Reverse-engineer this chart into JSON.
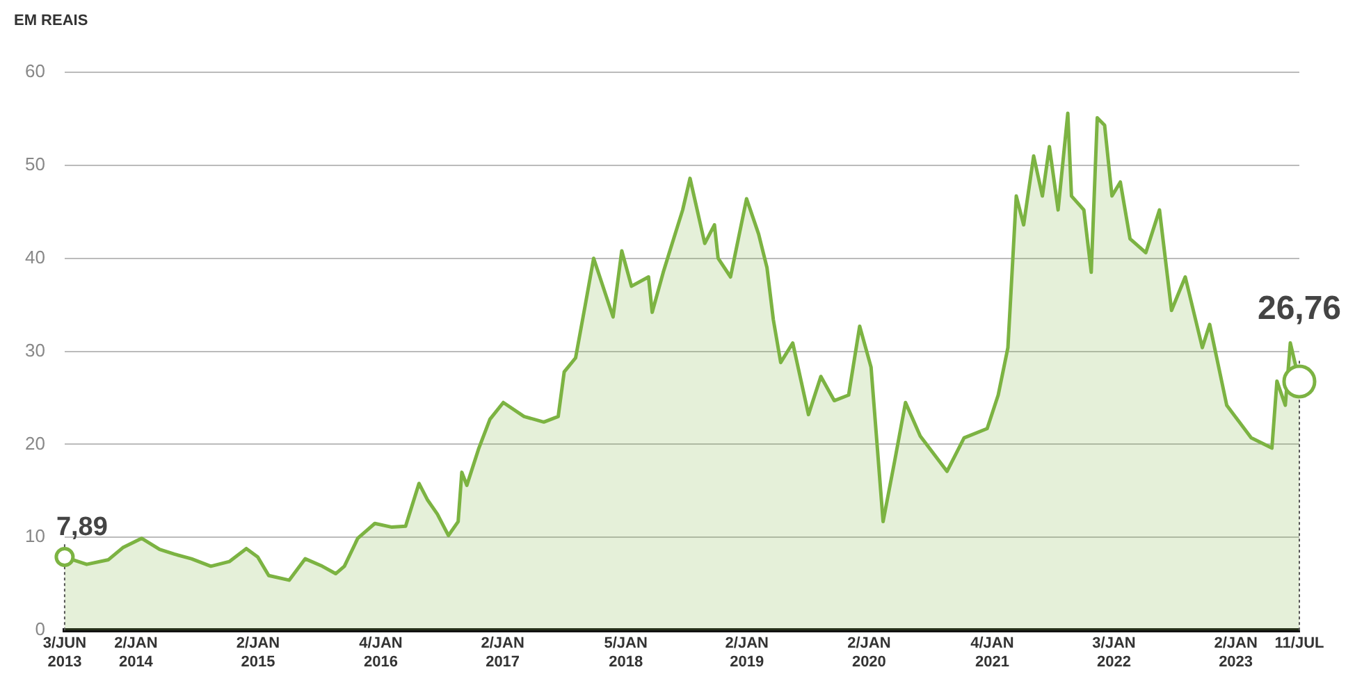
{
  "chart_data": {
    "type": "area",
    "ylabel": "EM REAIS",
    "x": [
      "2013-06-03",
      "2013-08-08",
      "2013-10-12",
      "2013-11-24",
      "2014-01-19",
      "2014-03-14",
      "2014-04-27",
      "2014-06-17",
      "2014-08-14",
      "2014-10-08",
      "2014-11-28",
      "2015-01-01",
      "2015-02-03",
      "2015-04-05",
      "2015-05-23",
      "2015-07-13",
      "2015-08-22",
      "2015-09-17",
      "2015-10-27",
      "2015-12-17",
      "2016-02-06",
      "2016-03-18",
      "2016-04-27",
      "2016-05-23",
      "2016-06-21",
      "2016-07-24",
      "2016-08-22",
      "2016-09-02",
      "2016-09-17",
      "2016-10-23",
      "2016-11-25",
      "2017-01-04",
      "2017-03-07",
      "2017-05-05",
      "2017-06-17",
      "2017-07-05",
      "2017-08-08",
      "2017-09-06",
      "2017-10-01",
      "2017-11-28",
      "2017-12-24",
      "2018-01-22",
      "2018-03-14",
      "2018-03-25",
      "2018-04-27",
      "2018-05-15",
      "2018-06-24",
      "2018-07-16",
      "2018-08-29",
      "2018-09-27",
      "2018-10-08",
      "2018-11-14",
      "2019-01-01",
      "2019-02-06",
      "2019-03-03",
      "2019-03-22",
      "2019-04-13",
      "2019-05-19",
      "2019-07-05",
      "2019-08-11",
      "2019-09-20",
      "2019-11-02",
      "2019-12-05",
      "2020-01-08",
      "2020-02-13",
      "2020-03-18",
      "2020-04-20",
      "2020-06-03",
      "2020-08-22",
      "2020-10-12",
      "2020-12-20",
      "2021-01-22",
      "2021-02-20",
      "2021-03-17",
      "2021-04-08",
      "2021-05-08",
      "2021-06-03",
      "2021-06-24",
      "2021-07-20",
      "2021-08-18",
      "2021-08-29",
      "2021-10-05",
      "2021-10-27",
      "2021-11-14",
      "2021-12-06",
      "2021-12-28",
      "2022-01-22",
      "2022-02-20",
      "2022-04-08",
      "2022-05-19",
      "2022-06-24",
      "2022-08-04",
      "2022-09-24",
      "2022-10-16",
      "2022-12-06",
      "2023-02-17",
      "2023-04-20",
      "2023-05-05",
      "2023-05-30",
      "2023-06-14",
      "2023-07-11"
    ],
    "values": [
      7.89,
      7.1,
      7.6,
      8.9,
      9.9,
      8.7,
      8.2,
      7.7,
      6.9,
      7.4,
      8.8,
      7.9,
      5.9,
      5.4,
      7.7,
      6.9,
      6.1,
      6.9,
      9.9,
      11.5,
      11.1,
      11.2,
      15.8,
      14.0,
      12.5,
      10.2,
      11.7,
      17.0,
      15.6,
      19.6,
      22.7,
      24.5,
      23.0,
      22.4,
      23.0,
      27.8,
      29.3,
      35.0,
      40.0,
      33.7,
      40.8,
      37.0,
      38.0,
      34.2,
      38.5,
      40.6,
      45.2,
      48.6,
      41.6,
      43.6,
      40.0,
      38.0,
      46.4,
      42.6,
      39.0,
      33.4,
      28.8,
      30.9,
      23.2,
      27.3,
      24.7,
      25.3,
      32.7,
      28.3,
      11.7,
      18.1,
      24.5,
      20.9,
      17.1,
      20.7,
      21.7,
      25.3,
      30.4,
      46.7,
      43.6,
      51.0,
      46.7,
      52.0,
      45.2,
      55.6,
      46.7,
      45.2,
      38.5,
      55.1,
      54.3,
      46.7,
      48.2,
      42.1,
      40.6,
      45.2,
      34.4,
      38.0,
      30.4,
      32.9,
      24.2,
      20.7,
      19.6,
      26.8,
      24.2,
      30.9,
      26.76
    ],
    "color": "#7cb342",
    "xlim": [
      "2013-06-03",
      "2023-07-11"
    ],
    "xticks": [
      {
        "value": "2013-06-03",
        "label": "3/JUN 2013"
      },
      {
        "value": "2014-01-02",
        "label": "2/JAN 2014"
      },
      {
        "value": "2015-01-02",
        "label": "2/JAN 2015"
      },
      {
        "value": "2016-01-04",
        "label": "4/JAN 2016"
      },
      {
        "value": "2017-01-02",
        "label": "2/JAN 2017"
      },
      {
        "value": "2018-01-05",
        "label": "5/JAN 2018"
      },
      {
        "value": "2019-01-02",
        "label": "2/JAN 2019"
      },
      {
        "value": "2020-01-02",
        "label": "2/JAN 2020"
      },
      {
        "value": "2021-01-04",
        "label": "4/JAN 2021"
      },
      {
        "value": "2022-01-03",
        "label": "3/JAN 2022"
      },
      {
        "value": "2023-01-02",
        "label": "2/JAN 2023"
      },
      {
        "value": "2023-07-11",
        "label": "11/JUL"
      }
    ],
    "ylim": [
      0,
      60
    ],
    "yticks": [
      0,
      10,
      20,
      30,
      40,
      50,
      60
    ],
    "grid": "y",
    "legend": false,
    "annotations": [
      {
        "text": "7,89",
        "x": "2013-06-03",
        "y": 7.89
      },
      {
        "text": "26,76",
        "x": "2023-07-11",
        "y": 26.76
      }
    ]
  }
}
